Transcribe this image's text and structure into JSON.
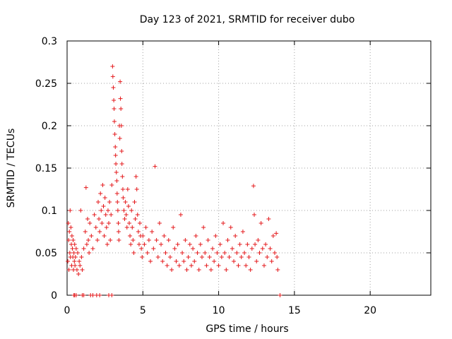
{
  "chart_data": {
    "type": "scatter",
    "title": "Day 123 of 2021, SRMTID for receiver dubo",
    "xlabel": "GPS time / hours",
    "ylabel": "SRMTID / TECUs",
    "xlim": [
      0,
      24
    ],
    "ylim": [
      0,
      0.3
    ],
    "xticks": [
      0,
      5,
      10,
      15,
      20
    ],
    "xtick_labels": [
      "0",
      "5",
      "10",
      "15",
      "20"
    ],
    "yticks": [
      0,
      0.05,
      0.1,
      0.15,
      0.2,
      0.25,
      0.3
    ],
    "ytick_labels": [
      "0",
      "0.05",
      "0.1",
      "0.15",
      "0.2",
      "0.25",
      "0.3"
    ],
    "grid": true,
    "marker": "+",
    "series": [
      {
        "name": "SRMTID",
        "color": "#e41a1c",
        "points": [
          [
            0.05,
            0.04
          ],
          [
            0.08,
            0.085
          ],
          [
            0.1,
            0.065
          ],
          [
            0.12,
            0.03
          ],
          [
            0.15,
            0.075
          ],
          [
            0.18,
            0.05
          ],
          [
            0.2,
            0.1
          ],
          [
            0.22,
            0.045
          ],
          [
            0.25,
            0.08
          ],
          [
            0.28,
            0.06
          ],
          [
            0.3,
            0.035
          ],
          [
            0.32,
            0.07
          ],
          [
            0.35,
            0.055
          ],
          [
            0.38,
            0.045
          ],
          [
            0.4,
            0.065
          ],
          [
            0.42,
            0.03
          ],
          [
            0.45,
            0.05
          ],
          [
            0.48,
            0.04
          ],
          [
            0.5,
            0.06
          ],
          [
            0.52,
            0.035
          ],
          [
            0.55,
            0.045
          ],
          [
            0.6,
            0.055
          ],
          [
            0.65,
            0.03
          ],
          [
            0.7,
            0.05
          ],
          [
            0.75,
            0.025
          ],
          [
            0.8,
            0.04
          ],
          [
            0.85,
            0.035
          ],
          [
            0.9,
            0.1
          ],
          [
            0.95,
            0.045
          ],
          [
            1.0,
            0.03
          ],
          [
            1.1,
            0.055
          ],
          [
            1.2,
            0.075
          ],
          [
            1.25,
            0.127
          ],
          [
            1.3,
            0.06
          ],
          [
            1.35,
            0.09
          ],
          [
            1.4,
            0.065
          ],
          [
            1.45,
            0.05
          ],
          [
            1.5,
            0.085
          ],
          [
            1.6,
            0.07
          ],
          [
            1.7,
            0.055
          ],
          [
            1.8,
            0.095
          ],
          [
            1.9,
            0.08
          ],
          [
            2.0,
            0.065
          ],
          [
            2.05,
            0.11
          ],
          [
            2.1,
            0.09
          ],
          [
            2.15,
            0.075
          ],
          [
            2.2,
            0.12
          ],
          [
            2.25,
            0.1
          ],
          [
            2.3,
            0.085
          ],
          [
            2.35,
            0.13
          ],
          [
            2.4,
            0.105
          ],
          [
            2.45,
            0.07
          ],
          [
            2.5,
            0.115
          ],
          [
            2.55,
            0.095
          ],
          [
            2.6,
            0.08
          ],
          [
            2.65,
            0.06
          ],
          [
            2.7,
            0.1
          ],
          [
            2.75,
            0.085
          ],
          [
            2.8,
            0.11
          ],
          [
            2.85,
            0.065
          ],
          [
            2.9,
            0.095
          ],
          [
            2.95,
            0.13
          ],
          [
            3.0,
            0.27
          ],
          [
            3.02,
            0.258
          ],
          [
            3.05,
            0.245
          ],
          [
            3.08,
            0.23
          ],
          [
            3.1,
            0.22
          ],
          [
            3.12,
            0.205
          ],
          [
            3.15,
            0.19
          ],
          [
            3.18,
            0.175
          ],
          [
            3.2,
            0.165
          ],
          [
            3.22,
            0.155
          ],
          [
            3.25,
            0.145
          ],
          [
            3.28,
            0.135
          ],
          [
            3.3,
            0.12
          ],
          [
            3.32,
            0.11
          ],
          [
            3.35,
            0.1
          ],
          [
            3.38,
            0.085
          ],
          [
            3.4,
            0.075
          ],
          [
            3.42,
            0.065
          ],
          [
            3.45,
            0.2
          ],
          [
            3.48,
            0.185
          ],
          [
            3.5,
            0.252
          ],
          [
            3.52,
            0.232
          ],
          [
            3.55,
            0.22
          ],
          [
            3.58,
            0.2
          ],
          [
            3.6,
            0.17
          ],
          [
            3.62,
            0.155
          ],
          [
            3.65,
            0.14
          ],
          [
            3.68,
            0.125
          ],
          [
            3.7,
            0.115
          ],
          [
            3.75,
            0.1
          ],
          [
            3.8,
            0.09
          ],
          [
            3.85,
            0.11
          ],
          [
            3.9,
            0.095
          ],
          [
            3.95,
            0.08
          ],
          [
            4.0,
            0.125
          ],
          [
            4.05,
            0.105
          ],
          [
            4.1,
            0.085
          ],
          [
            4.15,
            0.07
          ],
          [
            4.2,
            0.06
          ],
          [
            4.25,
            0.1
          ],
          [
            4.3,
            0.08
          ],
          [
            4.35,
            0.065
          ],
          [
            4.4,
            0.05
          ],
          [
            4.45,
            0.11
          ],
          [
            4.5,
            0.09
          ],
          [
            4.55,
            0.14
          ],
          [
            4.6,
            0.125
          ],
          [
            4.65,
            0.095
          ],
          [
            4.7,
            0.075
          ],
          [
            4.75,
            0.06
          ],
          [
            4.8,
            0.085
          ],
          [
            4.85,
            0.07
          ],
          [
            4.9,
            0.055
          ],
          [
            4.95,
            0.045
          ],
          [
            5.0,
            0.07
          ],
          [
            5.1,
            0.06
          ],
          [
            5.2,
            0.08
          ],
          [
            5.3,
            0.05
          ],
          [
            5.4,
            0.065
          ],
          [
            5.5,
            0.04
          ],
          [
            5.6,
            0.075
          ],
          [
            5.7,
            0.055
          ],
          [
            5.8,
            0.152
          ],
          [
            5.9,
            0.065
          ],
          [
            6.0,
            0.045
          ],
          [
            6.1,
            0.085
          ],
          [
            6.2,
            0.06
          ],
          [
            6.3,
            0.04
          ],
          [
            6.4,
            0.07
          ],
          [
            6.5,
            0.05
          ],
          [
            6.6,
            0.035
          ],
          [
            6.7,
            0.065
          ],
          [
            6.8,
            0.045
          ],
          [
            6.9,
            0.03
          ],
          [
            7.0,
            0.08
          ],
          [
            7.1,
            0.055
          ],
          [
            7.2,
            0.04
          ],
          [
            7.3,
            0.06
          ],
          [
            7.4,
            0.035
          ],
          [
            7.5,
            0.095
          ],
          [
            7.6,
            0.05
          ],
          [
            7.7,
            0.04
          ],
          [
            7.8,
            0.065
          ],
          [
            7.9,
            0.03
          ],
          [
            8.0,
            0.045
          ],
          [
            8.1,
            0.06
          ],
          [
            8.2,
            0.035
          ],
          [
            8.3,
            0.055
          ],
          [
            8.4,
            0.04
          ],
          [
            8.5,
            0.07
          ],
          [
            8.6,
            0.05
          ],
          [
            8.7,
            0.03
          ],
          [
            8.8,
            0.06
          ],
          [
            8.9,
            0.045
          ],
          [
            9.0,
            0.08
          ],
          [
            9.1,
            0.05
          ],
          [
            9.2,
            0.035
          ],
          [
            9.3,
            0.065
          ],
          [
            9.4,
            0.045
          ],
          [
            9.5,
            0.03
          ],
          [
            9.6,
            0.055
          ],
          [
            9.7,
            0.04
          ],
          [
            9.8,
            0.07
          ],
          [
            9.9,
            0.05
          ],
          [
            10.0,
            0.035
          ],
          [
            10.1,
            0.06
          ],
          [
            10.2,
            0.045
          ],
          [
            10.3,
            0.085
          ],
          [
            10.4,
            0.05
          ],
          [
            10.5,
            0.03
          ],
          [
            10.6,
            0.065
          ],
          [
            10.7,
            0.045
          ],
          [
            10.8,
            0.08
          ],
          [
            10.9,
            0.055
          ],
          [
            11.0,
            0.04
          ],
          [
            11.1,
            0.07
          ],
          [
            11.2,
            0.05
          ],
          [
            11.3,
            0.035
          ],
          [
            11.4,
            0.06
          ],
          [
            11.5,
            0.045
          ],
          [
            11.6,
            0.075
          ],
          [
            11.7,
            0.05
          ],
          [
            11.8,
            0.035
          ],
          [
            11.9,
            0.06
          ],
          [
            12.0,
            0.045
          ],
          [
            12.1,
            0.03
          ],
          [
            12.2,
            0.055
          ],
          [
            12.3,
            0.129
          ],
          [
            12.35,
            0.095
          ],
          [
            12.4,
            0.06
          ],
          [
            12.5,
            0.04
          ],
          [
            12.6,
            0.065
          ],
          [
            12.7,
            0.05
          ],
          [
            12.8,
            0.085
          ],
          [
            12.9,
            0.055
          ],
          [
            13.0,
            0.035
          ],
          [
            13.1,
            0.06
          ],
          [
            13.2,
            0.045
          ],
          [
            13.3,
            0.09
          ],
          [
            13.4,
            0.055
          ],
          [
            13.5,
            0.04
          ],
          [
            13.6,
            0.07
          ],
          [
            13.7,
            0.05
          ],
          [
            13.8,
            0.073
          ],
          [
            13.85,
            0.045
          ],
          [
            13.9,
            0.03
          ],
          [
            14.05,
            0.0
          ],
          [
            0.45,
            0.0
          ],
          [
            0.5,
            0.0
          ],
          [
            0.6,
            0.0
          ],
          [
            1.0,
            0.0
          ],
          [
            1.1,
            0.0
          ],
          [
            1.55,
            0.0
          ],
          [
            1.7,
            0.0
          ],
          [
            1.95,
            0.0
          ],
          [
            2.15,
            0.0
          ],
          [
            2.75,
            0.0
          ],
          [
            2.95,
            0.0
          ]
        ]
      }
    ]
  }
}
